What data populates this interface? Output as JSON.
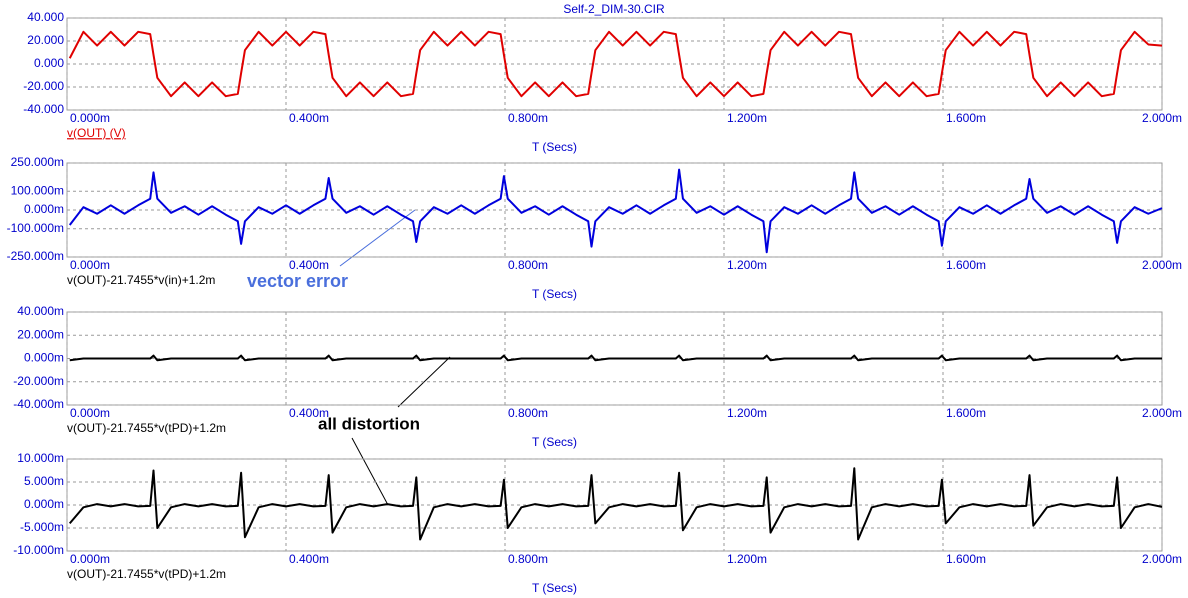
{
  "chart_data": [
    {
      "type": "line",
      "title": "Self-2_DIM-30.CIR",
      "x_label": "T (Secs)",
      "x": [
        0.005,
        0.03,
        0.055,
        0.08,
        0.105,
        0.13,
        0.152,
        0.158,
        0.165,
        0.19,
        0.215,
        0.24,
        0.265,
        0.29,
        0.312,
        0.318,
        0.325,
        0.35,
        0.375,
        0.4,
        0.425,
        0.45,
        0.472,
        0.478,
        0.485,
        0.51,
        0.535,
        0.56,
        0.585,
        0.61,
        0.632,
        0.638,
        0.645,
        0.67,
        0.695,
        0.72,
        0.745,
        0.77,
        0.792,
        0.798,
        0.805,
        0.83,
        0.855,
        0.88,
        0.905,
        0.93,
        0.952,
        0.958,
        0.965,
        0.99,
        1.015,
        1.04,
        1.065,
        1.09,
        1.112,
        1.118,
        1.125,
        1.15,
        1.175,
        1.2,
        1.225,
        1.25,
        1.272,
        1.278,
        1.285,
        1.31,
        1.335,
        1.36,
        1.385,
        1.41,
        1.432,
        1.438,
        1.445,
        1.47,
        1.495,
        1.52,
        1.545,
        1.57,
        1.592,
        1.598,
        1.605,
        1.63,
        1.655,
        1.68,
        1.705,
        1.73,
        1.752,
        1.758,
        1.765,
        1.79,
        1.815,
        1.84,
        1.865,
        1.89,
        1.912,
        1.918,
        1.925,
        1.95,
        1.975,
        2
      ],
      "series": [
        {
          "name": "v(OUT) (V)",
          "color": "#e00000",
          "values": [
            5,
            28,
            16,
            28,
            16,
            28,
            26,
            8,
            -12,
            -28,
            -16,
            -28,
            -16,
            -28,
            -26,
            -8,
            12,
            28,
            16,
            28,
            16,
            28,
            26,
            8,
            -12,
            -28,
            -16,
            -28,
            -16,
            -28,
            -26,
            -8,
            12,
            28,
            16,
            28,
            16,
            28,
            26,
            8,
            -12,
            -28,
            -16,
            -28,
            -16,
            -28,
            -26,
            -8,
            12,
            28,
            16,
            28,
            16,
            28,
            26,
            8,
            -12,
            -28,
            -16,
            -28,
            -16,
            -28,
            -26,
            -8,
            12,
            28,
            16,
            28,
            16,
            28,
            26,
            8,
            -12,
            -28,
            -16,
            -28,
            -16,
            -28,
            -26,
            -8,
            12,
            28,
            16,
            28,
            16,
            28,
            26,
            8,
            -12,
            -28,
            -16,
            -28,
            -16,
            -28,
            -26,
            -8,
            12,
            28,
            17,
            16
          ]
        }
      ],
      "xlim": [
        0,
        2
      ],
      "xticks": [
        {
          "value": 0,
          "label": "0.000m"
        },
        {
          "value": 0.4,
          "label": "0.400m"
        },
        {
          "value": 0.8,
          "label": "0.800m"
        },
        {
          "value": 1.2,
          "label": "1.200m"
        },
        {
          "value": 1.6,
          "label": "1.600m"
        },
        {
          "value": 2,
          "label": "2.000m"
        }
      ],
      "ylim": [
        -40,
        40
      ],
      "yticks": [
        {
          "value": 40,
          "label": "40.000"
        },
        {
          "value": 20,
          "label": "20.000"
        },
        {
          "value": 0,
          "label": "0.000"
        },
        {
          "value": -20,
          "label": "-20.000"
        },
        {
          "value": -40,
          "label": "-40.000"
        }
      ],
      "grid": true
    },
    {
      "type": "line",
      "x_label": "T (Secs)",
      "annotation": "vector error",
      "x": [
        0.005,
        0.03,
        0.055,
        0.08,
        0.105,
        0.13,
        0.152,
        0.158,
        0.165,
        0.19,
        0.215,
        0.24,
        0.265,
        0.29,
        0.312,
        0.318,
        0.325,
        0.35,
        0.375,
        0.4,
        0.425,
        0.45,
        0.472,
        0.478,
        0.485,
        0.51,
        0.535,
        0.56,
        0.585,
        0.61,
        0.632,
        0.638,
        0.645,
        0.67,
        0.695,
        0.72,
        0.745,
        0.77,
        0.792,
        0.798,
        0.805,
        0.83,
        0.855,
        0.88,
        0.905,
        0.93,
        0.952,
        0.958,
        0.965,
        0.99,
        1.015,
        1.04,
        1.065,
        1.09,
        1.112,
        1.118,
        1.125,
        1.15,
        1.175,
        1.2,
        1.225,
        1.25,
        1.272,
        1.278,
        1.285,
        1.31,
        1.335,
        1.36,
        1.385,
        1.41,
        1.432,
        1.438,
        1.445,
        1.47,
        1.495,
        1.52,
        1.545,
        1.57,
        1.592,
        1.598,
        1.605,
        1.63,
        1.655,
        1.68,
        1.705,
        1.73,
        1.752,
        1.758,
        1.765,
        1.79,
        1.815,
        1.84,
        1.865,
        1.89,
        1.912,
        1.918,
        1.925,
        1.95,
        1.975,
        2
      ],
      "series": [
        {
          "name": "v(OUT)-21.7455*v(in)+1.2m",
          "color": "#0000dd",
          "values": [
            -80,
            15,
            -20,
            25,
            -20,
            25,
            60,
            200,
            60,
            -15,
            20,
            -25,
            20,
            -25,
            -60,
            -180,
            -60,
            15,
            -20,
            25,
            -20,
            25,
            60,
            170,
            60,
            -15,
            20,
            -25,
            20,
            -25,
            -60,
            -170,
            -60,
            15,
            -20,
            25,
            -20,
            25,
            60,
            180,
            60,
            -15,
            20,
            -25,
            20,
            -25,
            -60,
            -195,
            -60,
            15,
            -20,
            25,
            -20,
            25,
            60,
            215,
            60,
            -15,
            20,
            -25,
            20,
            -25,
            -60,
            -225,
            -60,
            15,
            -20,
            25,
            -20,
            25,
            60,
            200,
            60,
            -15,
            20,
            -25,
            20,
            -25,
            -60,
            -190,
            -60,
            15,
            -20,
            25,
            -20,
            25,
            60,
            165,
            60,
            -15,
            20,
            -25,
            20,
            -25,
            -60,
            -175,
            -60,
            15,
            -20,
            10
          ]
        }
      ],
      "xlim": [
        0,
        2
      ],
      "xticks": [
        {
          "value": 0,
          "label": "0.000m"
        },
        {
          "value": 0.4,
          "label": "0.400m"
        },
        {
          "value": 0.8,
          "label": "0.800m"
        },
        {
          "value": 1.2,
          "label": "1.200m"
        },
        {
          "value": 1.6,
          "label": "1.600m"
        },
        {
          "value": 2,
          "label": "2.000m"
        }
      ],
      "ylim": [
        -250,
        250
      ],
      "yticks": [
        {
          "value": 250,
          "label": "250.000m"
        },
        {
          "value": 100,
          "label": "100.000m"
        },
        {
          "value": 0,
          "label": "0.000m"
        },
        {
          "value": -100,
          "label": "-100.000m"
        },
        {
          "value": -250,
          "label": "-250.000m"
        }
      ],
      "grid": true
    },
    {
      "type": "line",
      "x_label": "T (Secs)",
      "x": [
        0.005,
        0.03,
        0.055,
        0.08,
        0.105,
        0.13,
        0.152,
        0.158,
        0.165,
        0.19,
        0.215,
        0.24,
        0.265,
        0.29,
        0.312,
        0.318,
        0.325,
        0.35,
        0.375,
        0.4,
        0.425,
        0.45,
        0.472,
        0.478,
        0.485,
        0.51,
        0.535,
        0.56,
        0.585,
        0.61,
        0.632,
        0.638,
        0.645,
        0.67,
        0.695,
        0.72,
        0.745,
        0.77,
        0.792,
        0.798,
        0.805,
        0.83,
        0.855,
        0.88,
        0.905,
        0.93,
        0.952,
        0.958,
        0.965,
        0.99,
        1.015,
        1.04,
        1.065,
        1.09,
        1.112,
        1.118,
        1.125,
        1.15,
        1.175,
        1.2,
        1.225,
        1.25,
        1.272,
        1.278,
        1.285,
        1.31,
        1.335,
        1.36,
        1.385,
        1.41,
        1.432,
        1.438,
        1.445,
        1.47,
        1.495,
        1.52,
        1.545,
        1.57,
        1.592,
        1.598,
        1.605,
        1.63,
        1.655,
        1.68,
        1.705,
        1.73,
        1.752,
        1.758,
        1.765,
        1.79,
        1.815,
        1.84,
        1.865,
        1.89,
        1.912,
        1.918,
        1.925,
        1.95,
        1.975,
        2
      ],
      "series": [
        {
          "name": "v(OUT)-21.7455*v(tPD)+1.2m",
          "color": "#000000",
          "values": [
            -1.5,
            0,
            0,
            0,
            0,
            0,
            0,
            2.5,
            -1.5,
            0,
            0,
            0,
            0,
            0,
            0,
            2.5,
            -1.5,
            0,
            0,
            0,
            0,
            0,
            0,
            2.5,
            -1.5,
            0,
            0,
            0,
            0,
            0,
            0,
            2.5,
            -1.5,
            0,
            0,
            0,
            0,
            0,
            0,
            2.5,
            -1.5,
            0,
            0,
            0,
            0,
            0,
            0,
            2.5,
            -1.5,
            0,
            0,
            0,
            0,
            0,
            0,
            2.5,
            -1.5,
            0,
            0,
            0,
            0,
            0,
            0,
            2.5,
            -1.5,
            0,
            0,
            0,
            0,
            0,
            0,
            2.5,
            -1.5,
            0,
            0,
            0,
            0,
            0,
            0,
            2.5,
            -1.5,
            0,
            0,
            0,
            0,
            0,
            0,
            2.5,
            -1.5,
            0,
            0,
            0,
            0,
            0,
            0,
            2.5,
            -1.5,
            0,
            0,
            0
          ]
        }
      ],
      "xlim": [
        0,
        2
      ],
      "xticks": [
        {
          "value": 0,
          "label": "0.000m"
        },
        {
          "value": 0.4,
          "label": "0.400m"
        },
        {
          "value": 0.8,
          "label": "0.800m"
        },
        {
          "value": 1.2,
          "label": "1.200m"
        },
        {
          "value": 1.6,
          "label": "1.600m"
        },
        {
          "value": 2,
          "label": "2.000m"
        }
      ],
      "ylim": [
        -40,
        40
      ],
      "yticks": [
        {
          "value": 40,
          "label": "40.000m"
        },
        {
          "value": 20,
          "label": "20.000m"
        },
        {
          "value": 0,
          "label": "0.000m"
        },
        {
          "value": -20,
          "label": "-20.000m"
        },
        {
          "value": -40,
          "label": "-40.000m"
        }
      ],
      "grid": true
    },
    {
      "type": "line",
      "x_label": "T (Secs)",
      "annotation": "all distortion",
      "x": [
        0.005,
        0.03,
        0.055,
        0.08,
        0.105,
        0.13,
        0.152,
        0.158,
        0.165,
        0.19,
        0.215,
        0.24,
        0.265,
        0.29,
        0.312,
        0.318,
        0.325,
        0.35,
        0.375,
        0.4,
        0.425,
        0.45,
        0.472,
        0.478,
        0.485,
        0.51,
        0.535,
        0.56,
        0.585,
        0.61,
        0.632,
        0.638,
        0.645,
        0.67,
        0.695,
        0.72,
        0.745,
        0.77,
        0.792,
        0.798,
        0.805,
        0.83,
        0.855,
        0.88,
        0.905,
        0.93,
        0.952,
        0.958,
        0.965,
        0.99,
        1.015,
        1.04,
        1.065,
        1.09,
        1.112,
        1.118,
        1.125,
        1.15,
        1.175,
        1.2,
        1.225,
        1.25,
        1.272,
        1.278,
        1.285,
        1.31,
        1.335,
        1.36,
        1.385,
        1.41,
        1.432,
        1.438,
        1.445,
        1.47,
        1.495,
        1.52,
        1.545,
        1.57,
        1.592,
        1.598,
        1.605,
        1.63,
        1.655,
        1.68,
        1.705,
        1.73,
        1.752,
        1.758,
        1.765,
        1.79,
        1.815,
        1.84,
        1.865,
        1.89,
        1.912,
        1.918,
        1.925,
        1.95,
        1.975,
        2
      ],
      "series": [
        {
          "name": "v(OUT)-21.7455*v(tPD)+1.2m",
          "color": "#000000",
          "values": [
            -4,
            -0.5,
            0.2,
            -0.3,
            0.2,
            -0.3,
            -0.2,
            7.5,
            -5,
            -0.5,
            0.2,
            -0.3,
            0.2,
            -0.3,
            -0.2,
            7,
            -7,
            -0.5,
            0.2,
            -0.3,
            0.2,
            -0.3,
            -0.2,
            6.5,
            -6,
            -0.5,
            0.2,
            -0.3,
            0.2,
            -0.3,
            -0.2,
            6,
            -7.5,
            -0.5,
            0.2,
            -0.3,
            0.2,
            -0.3,
            -0.2,
            5.5,
            -5,
            -0.5,
            0.2,
            -0.3,
            0.2,
            -0.3,
            -0.2,
            6.5,
            -4,
            -0.5,
            0.2,
            -0.3,
            0.2,
            -0.3,
            -0.2,
            7,
            -5.5,
            -0.5,
            0.2,
            -0.3,
            0.2,
            -0.3,
            -0.2,
            6,
            -6,
            -0.5,
            0.2,
            -0.3,
            0.2,
            -0.3,
            -0.2,
            8,
            -7.5,
            -0.5,
            0.2,
            -0.3,
            0.2,
            -0.3,
            -0.2,
            5.5,
            -4,
            -0.5,
            0.2,
            -0.3,
            0.2,
            -0.3,
            -0.2,
            6.5,
            -4.5,
            -0.5,
            0.2,
            -0.3,
            0.2,
            -0.3,
            -0.2,
            6,
            -5,
            -0.5,
            0.2,
            -0.4
          ]
        }
      ],
      "xlim": [
        0,
        2
      ],
      "xticks": [
        {
          "value": 0,
          "label": "0.000m"
        },
        {
          "value": 0.4,
          "label": "0.400m"
        },
        {
          "value": 0.8,
          "label": "0.800m"
        },
        {
          "value": 1.2,
          "label": "1.200m"
        },
        {
          "value": 1.6,
          "label": "1.600m"
        },
        {
          "value": 2,
          "label": "2.000m"
        }
      ],
      "ylim": [
        -10,
        10
      ],
      "yticks": [
        {
          "value": 10,
          "label": "10.000m"
        },
        {
          "value": 5,
          "label": "5.000m"
        },
        {
          "value": 0,
          "label": "0.000m"
        },
        {
          "value": -5,
          "label": "-5.000m"
        },
        {
          "value": -10,
          "label": "-10.000m"
        }
      ],
      "grid": true
    }
  ]
}
